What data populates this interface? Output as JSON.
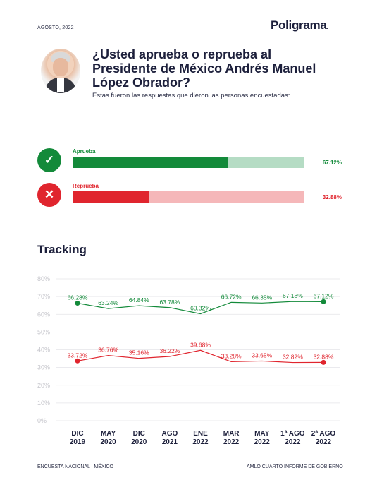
{
  "header": {
    "date": "AGOSTO, 2022",
    "brand": "Poligrama",
    "brand_dot": "■"
  },
  "question": {
    "title": "¿Usted aprueba o reprueba al Presidente de México Andrés Manuel López Obrador?",
    "subtitle": "Éstas fueron las respuestas que dieron las personas encuestadas:"
  },
  "results": [
    {
      "label": "Aprueba",
      "value": 67.12,
      "value_text": "67.12%",
      "icon": "check-icon",
      "color": "#138a3a",
      "light": "#b5dcc4",
      "symbol": "✓"
    },
    {
      "label": "Reprueba",
      "value": 32.88,
      "value_text": "32.88%",
      "icon": "x-icon",
      "color": "#e0252e",
      "light": "#f5b7b9",
      "symbol": "✕"
    }
  ],
  "tracking_title": "Tracking",
  "chart_data": {
    "type": "line",
    "title": "Tracking",
    "categories": [
      [
        "DIC",
        "2019"
      ],
      [
        "MAY",
        "2020"
      ],
      [
        "DIC",
        "2020"
      ],
      [
        "AGO",
        "2021"
      ],
      [
        "ENE",
        "2022"
      ],
      [
        "MAR",
        "2022"
      ],
      [
        "MAY",
        "2022"
      ],
      [
        "1ª AGO",
        "2022"
      ],
      [
        "2ª AGO",
        "2022"
      ]
    ],
    "ylim": [
      0,
      80
    ],
    "yticks": [
      "0%",
      "10%",
      "20%",
      "30%",
      "40%",
      "50%",
      "60%",
      "70%",
      "80%"
    ],
    "grid": true,
    "series": [
      {
        "name": "Aprueba",
        "color": "#138a3a",
        "values": [
          66.28,
          63.24,
          64.84,
          63.78,
          60.32,
          66.72,
          66.35,
          67.18,
          67.12
        ],
        "labels": [
          "66.28%",
          "63.24%",
          "64.84%",
          "63.78%",
          "60.32%",
          "66.72%",
          "66.35%",
          "67.18%",
          "67.12%"
        ]
      },
      {
        "name": "Reprueba",
        "color": "#e0252e",
        "values": [
          33.72,
          36.76,
          35.16,
          36.22,
          39.68,
          33.28,
          33.65,
          32.82,
          32.88
        ],
        "labels": [
          "33.72%",
          "36.76%",
          "35.16%",
          "36.22%",
          "39.68%",
          "33.28%",
          "33.65%",
          "32.82%",
          "32.88%"
        ]
      }
    ]
  },
  "footer": {
    "left": "ENCUESTA NACIONAL | MÉXICO",
    "right": "AMLO CUARTO INFORME DE GOBIERNO"
  }
}
